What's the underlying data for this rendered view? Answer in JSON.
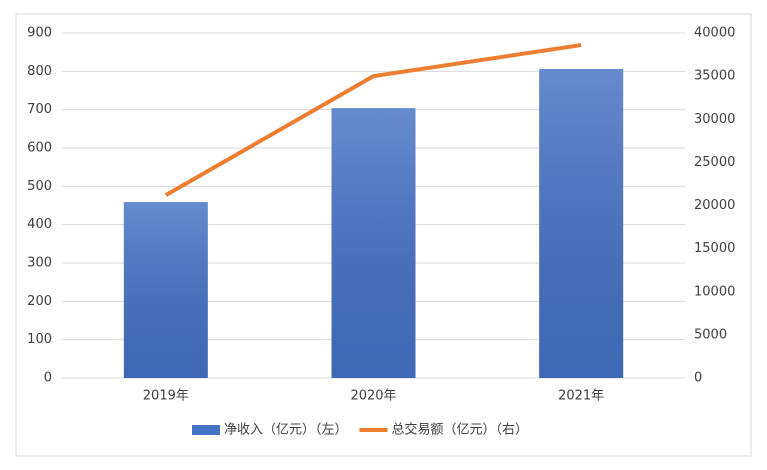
{
  "chart_data": {
    "type": "bar-line",
    "categories": [
      "2019年",
      "2020年",
      "2021年"
    ],
    "series": [
      {
        "name": "净收入（亿元）（左）",
        "color": "#4472c4",
        "type": "bar",
        "values": [
          459,
          704,
          806
        ]
      },
      {
        "name": "总交易额（亿元）（右）",
        "color": "#ed7d31",
        "type": "line",
        "axis": "y2",
        "values": [
          21200,
          35000,
          38600
        ]
      }
    ],
    "ylim": [
      0,
      900
    ],
    "yticks": [
      0,
      100,
      200,
      300,
      400,
      500,
      600,
      700,
      800,
      900
    ],
    "y2lim": [
      0,
      40000
    ],
    "y2ticks": [
      0,
      5000,
      10000,
      15000,
      20000,
      25000,
      30000,
      35000,
      40000
    ],
    "grid": true,
    "legend": "bottom"
  }
}
